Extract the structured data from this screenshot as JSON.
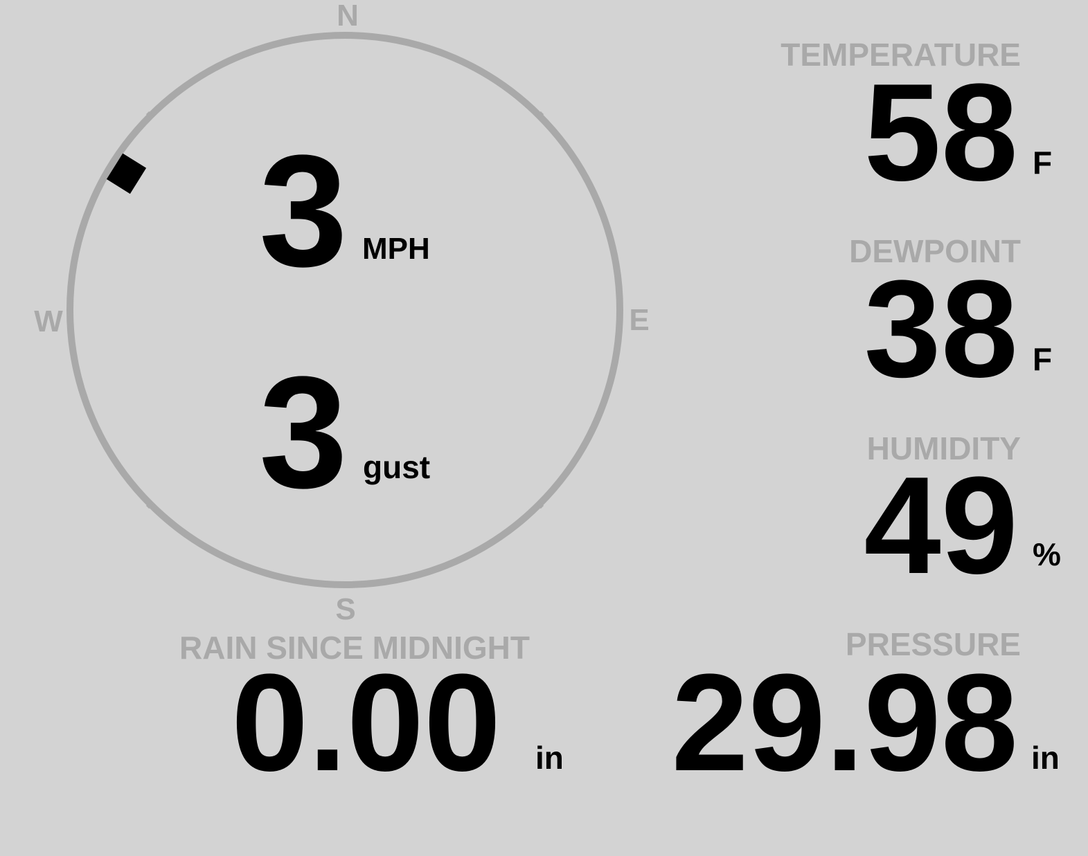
{
  "wind": {
    "speed": "3",
    "speed_unit": "MPH",
    "gust": "3",
    "gust_unit": "gust",
    "direction_deg": 302,
    "compass": {
      "n": "N",
      "e": "E",
      "s": "S",
      "w": "W"
    }
  },
  "temperature": {
    "label": "TEMPERATURE",
    "value": "58",
    "unit": "F"
  },
  "dewpoint": {
    "label": "DEWPOINT",
    "value": "38",
    "unit": "F"
  },
  "humidity": {
    "label": "HUMIDITY",
    "value": "49",
    "unit": "%"
  },
  "rain": {
    "label": "RAIN SINCE MIDNIGHT",
    "value": "0.00",
    "unit": "in"
  },
  "pressure": {
    "label": "PRESSURE",
    "value": "29.98",
    "unit": "in"
  },
  "colors": {
    "background": "#d3d3d3",
    "muted": "#a9a9a9",
    "value": "#000000"
  }
}
